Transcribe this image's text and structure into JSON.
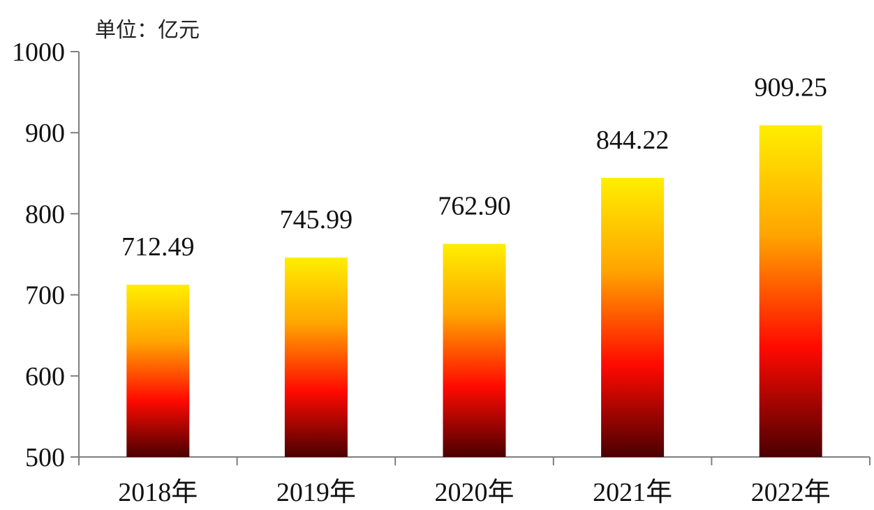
{
  "chart_data": {
    "type": "bar",
    "unit_label": "单位：亿元",
    "categories": [
      "2018年",
      "2019年",
      "2020年",
      "2021年",
      "2022年"
    ],
    "values": [
      712.49,
      745.99,
      762.9,
      844.22,
      909.25
    ],
    "value_labels": [
      "712.49",
      "745.99",
      "762.90",
      "844.22",
      "909.25"
    ],
    "ylim": [
      500,
      1000
    ],
    "yticks": [
      500,
      600,
      700,
      800,
      900,
      1000
    ],
    "ytick_labels": [
      "500",
      "600",
      "700",
      "800",
      "900",
      "1000"
    ],
    "grid": false,
    "legend": "none",
    "title": "",
    "xlabel": "",
    "ylabel": ""
  },
  "colors": {
    "bar_top": "#ffee00",
    "bar_mid_upper": "#ffa500",
    "bar_mid_lower": "#ff0a00",
    "bar_bottom": "#4a0000",
    "axis": "#7f7f7f"
  }
}
